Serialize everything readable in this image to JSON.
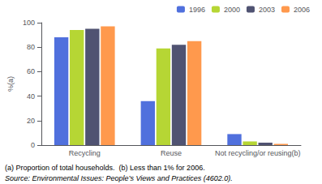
{
  "chart_data": {
    "type": "bar",
    "categories": [
      "Recycling",
      "Reuse",
      "Not recycling/or reusing(b)"
    ],
    "series": [
      {
        "name": "1996",
        "values": [
          88,
          36,
          9
        ]
      },
      {
        "name": "2000",
        "values": [
          94,
          79,
          3
        ]
      },
      {
        "name": "2003",
        "values": [
          95,
          82,
          2
        ]
      },
      {
        "name": "2006",
        "values": [
          97,
          85,
          1
        ]
      }
    ],
    "ylabel": "%(a)",
    "ylim": [
      0,
      100
    ],
    "yticks": [
      0,
      20,
      40,
      60,
      80,
      100
    ],
    "grid": false,
    "legend": "upper right",
    "annotations": [
      "(a) Proportion of total households.  (b) Less than 1% for 2006.",
      "Source: Environmental Issues: People’s Views and Practices (4602.0)."
    ]
  }
}
